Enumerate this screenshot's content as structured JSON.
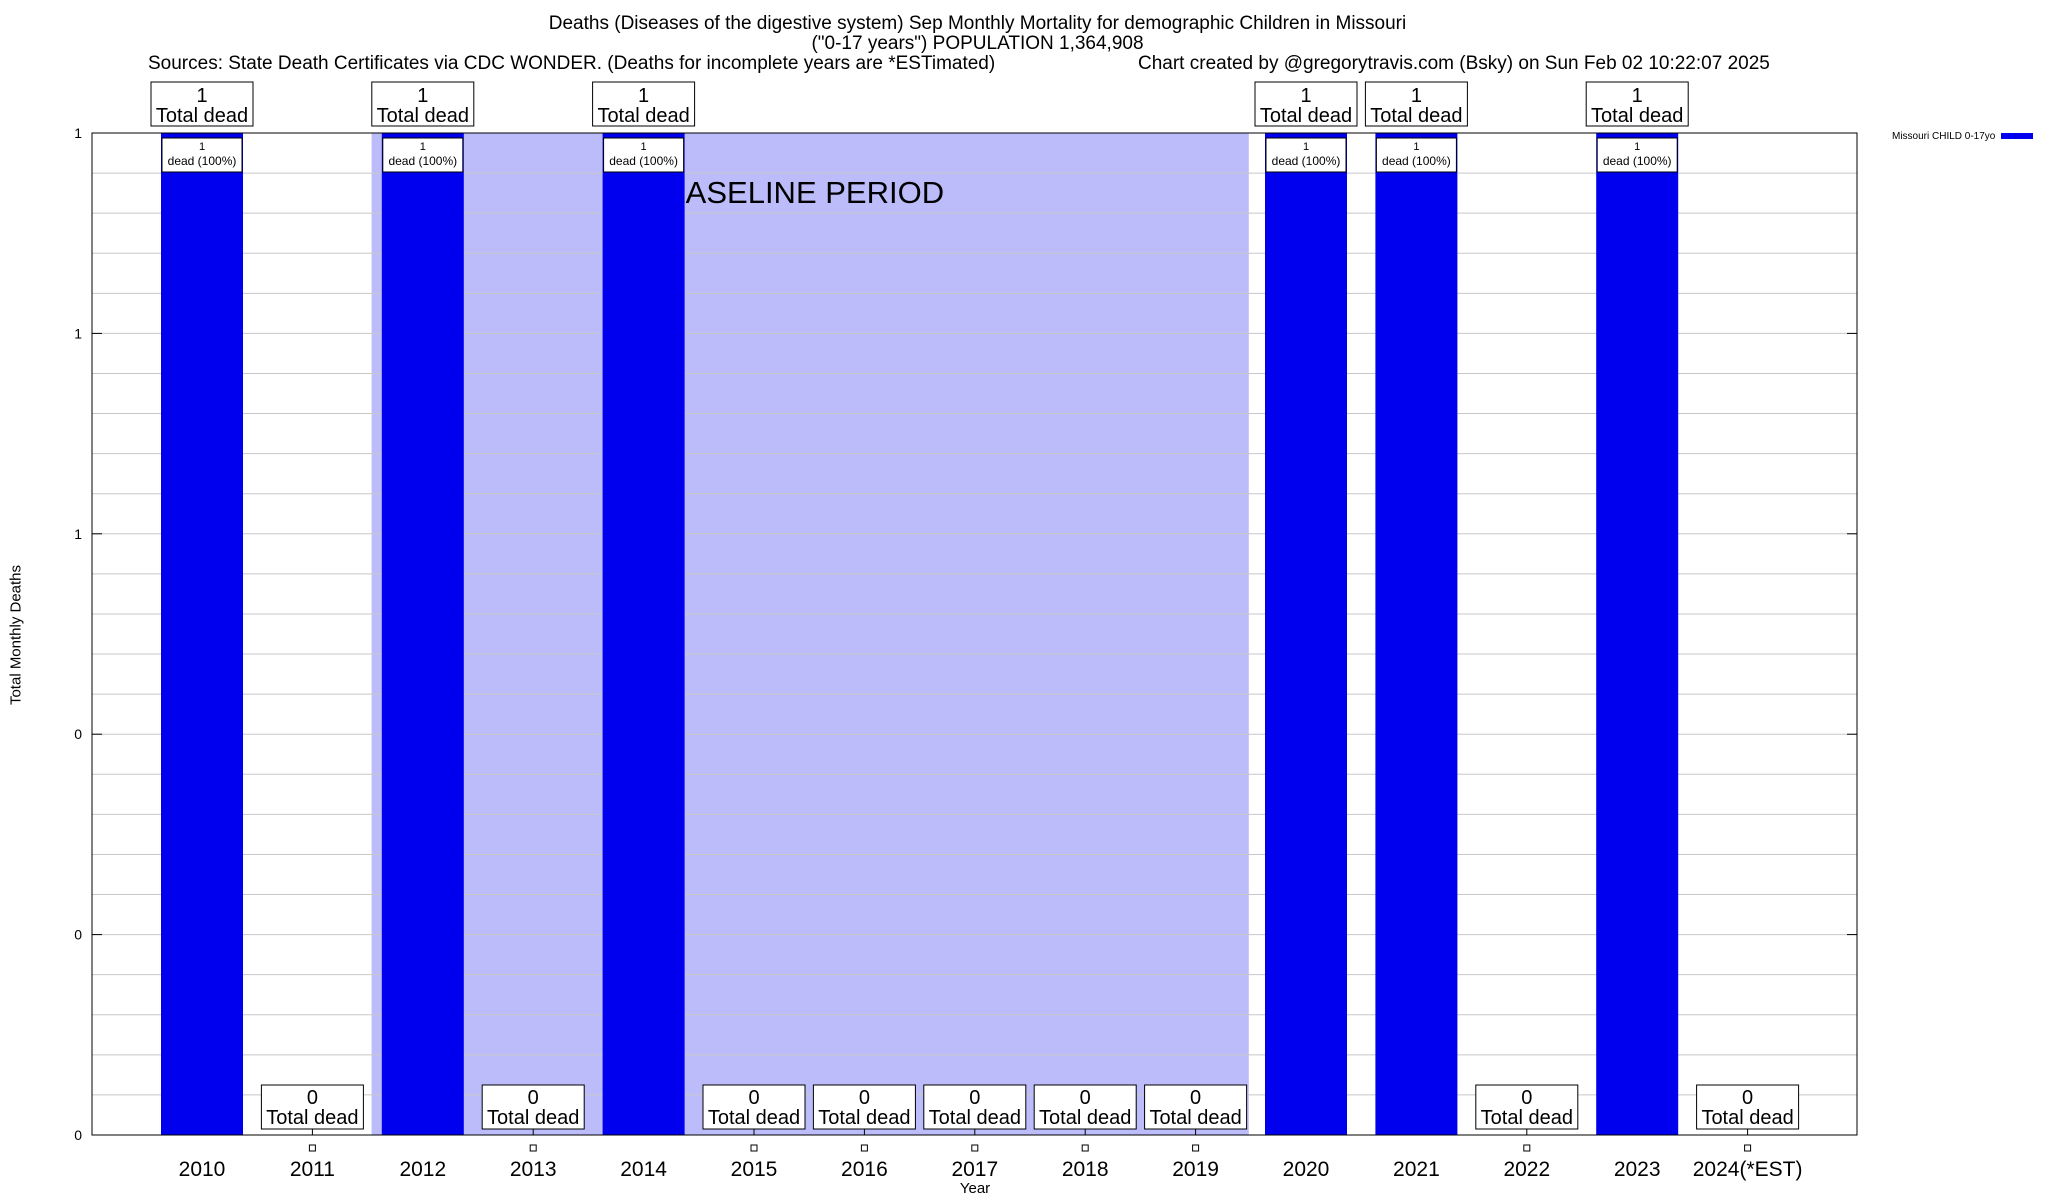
{
  "header": {
    "title_line1": "Deaths (Diseases of the digestive system) Sep Monthly Mortality for demographic Children in Missouri",
    "title_line2": "(\"0-17 years\") POPULATION 1,364,908",
    "sources": "Sources: State Death Certificates via CDC WONDER. (Deaths for incomplete years are *ESTimated)",
    "credit": "Chart created by @gregorytravis.com (Bsky) on Sun Feb 02 10:22:07 2025"
  },
  "chart_data": {
    "type": "bar",
    "categories": [
      "2010",
      "2011",
      "2012",
      "2013",
      "2014",
      "2015",
      "2016",
      "2017",
      "2018",
      "2019",
      "2020",
      "2021",
      "2022",
      "2023",
      "2024(*EST)"
    ],
    "series": [
      {
        "name": "Missouri CHILD 0-17yo",
        "values": [
          1,
          0,
          1,
          0,
          1,
          0,
          0,
          0,
          0,
          0,
          1,
          1,
          0,
          1,
          0
        ],
        "color": "#0000ee"
      }
    ],
    "xlabel": "Year",
    "ylabel": "Total Monthly Deaths",
    "ylim": [
      0,
      1
    ],
    "ytick_labels": [
      "0",
      "0",
      "0",
      "1",
      "1",
      "1"
    ],
    "total_label_suffix": "Total dead",
    "bar_label_suffix": "dead (100%)",
    "baseline": {
      "label": "BASELINE PERIOD",
      "from": "2012",
      "to": "2019",
      "color": "#bcbcfb"
    },
    "grid": true,
    "legend_position": "top-right"
  }
}
